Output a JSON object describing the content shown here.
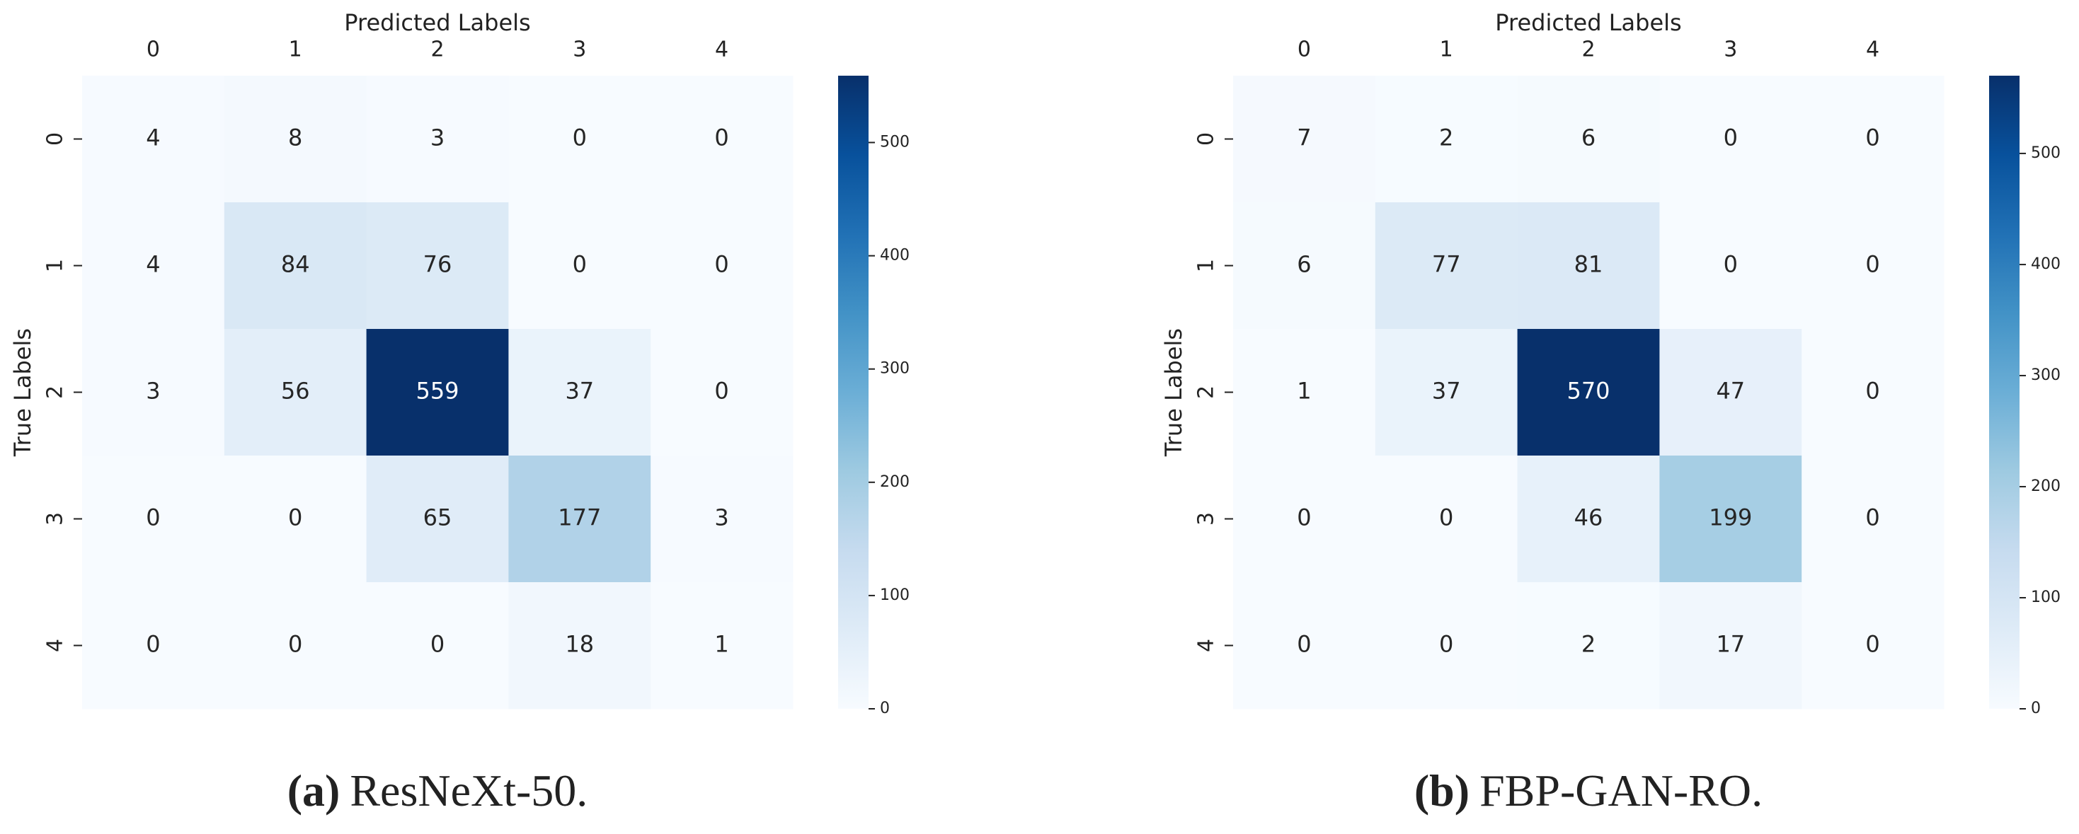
{
  "chart_data": [
    {
      "type": "heatmap",
      "caption_label": "(a)",
      "caption": "ResNeXt-50.",
      "x_label": "Predicted Labels",
      "y_label": "True Labels",
      "x_categories": [
        "0",
        "1",
        "2",
        "3",
        "4"
      ],
      "y_categories": [
        "0",
        "1",
        "2",
        "3",
        "4"
      ],
      "matrix": [
        [
          4,
          8,
          3,
          0,
          0
        ],
        [
          4,
          84,
          76,
          0,
          0
        ],
        [
          3,
          56,
          559,
          37,
          0
        ],
        [
          0,
          0,
          65,
          177,
          3
        ],
        [
          0,
          0,
          0,
          18,
          1
        ]
      ],
      "colormap": "Blues",
      "zlim": [
        0,
        559
      ],
      "zticks": [
        0,
        100,
        200,
        300,
        400,
        500
      ]
    },
    {
      "type": "heatmap",
      "caption_label": "(b)",
      "caption": "FBP-GAN-RO.",
      "x_label": "Predicted Labels",
      "y_label": "True Labels",
      "x_categories": [
        "0",
        "1",
        "2",
        "3",
        "4"
      ],
      "y_categories": [
        "0",
        "1",
        "2",
        "3",
        "4"
      ],
      "matrix": [
        [
          7,
          2,
          6,
          0,
          0
        ],
        [
          6,
          77,
          81,
          0,
          0
        ],
        [
          1,
          37,
          570,
          47,
          0
        ],
        [
          0,
          0,
          46,
          199,
          0
        ],
        [
          0,
          0,
          2,
          17,
          0
        ]
      ],
      "colormap": "Blues",
      "zlim": [
        0,
        570
      ],
      "zticks": [
        0,
        100,
        200,
        300,
        400,
        500
      ]
    }
  ]
}
